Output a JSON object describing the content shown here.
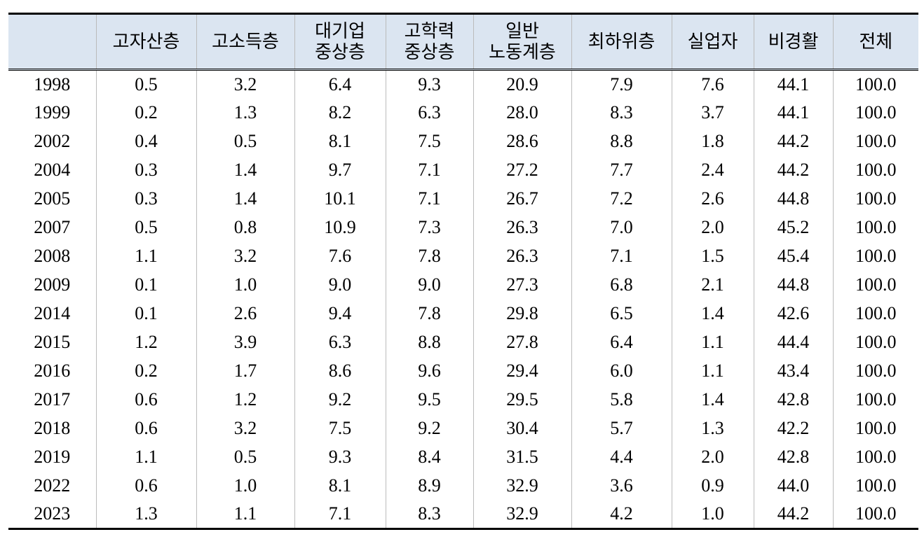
{
  "table": {
    "columns": [
      "고자산층",
      "고소득층",
      "대기업\n중상층",
      "고학력\n중상층",
      "일반\n노동계층",
      "최하위층",
      "실업자",
      "비경활",
      "전체"
    ],
    "rows": [
      [
        "1998",
        "0.5",
        "3.2",
        "6.4",
        "9.3",
        "20.9",
        "7.9",
        "7.6",
        "44.1",
        "100.0"
      ],
      [
        "1999",
        "0.2",
        "1.3",
        "8.2",
        "6.3",
        "28.0",
        "8.3",
        "3.7",
        "44.1",
        "100.0"
      ],
      [
        "2002",
        "0.4",
        "0.5",
        "8.1",
        "7.5",
        "28.6",
        "8.8",
        "1.8",
        "44.2",
        "100.0"
      ],
      [
        "2004",
        "0.3",
        "1.4",
        "9.7",
        "7.1",
        "27.2",
        "7.7",
        "2.4",
        "44.2",
        "100.0"
      ],
      [
        "2005",
        "0.3",
        "1.4",
        "10.1",
        "7.1",
        "26.7",
        "7.2",
        "2.6",
        "44.8",
        "100.0"
      ],
      [
        "2007",
        "0.5",
        "0.8",
        "10.9",
        "7.3",
        "26.3",
        "7.0",
        "2.0",
        "45.2",
        "100.0"
      ],
      [
        "2008",
        "1.1",
        "3.2",
        "7.6",
        "7.8",
        "26.3",
        "7.1",
        "1.5",
        "45.4",
        "100.0"
      ],
      [
        "2009",
        "0.1",
        "1.0",
        "9.0",
        "9.0",
        "27.3",
        "6.8",
        "2.1",
        "44.8",
        "100.0"
      ],
      [
        "2014",
        "0.1",
        "2.6",
        "9.4",
        "7.8",
        "29.8",
        "6.5",
        "1.4",
        "42.6",
        "100.0"
      ],
      [
        "2015",
        "1.2",
        "3.9",
        "6.3",
        "8.8",
        "27.8",
        "6.4",
        "1.1",
        "44.4",
        "100.0"
      ],
      [
        "2016",
        "0.2",
        "1.7",
        "8.6",
        "9.6",
        "29.4",
        "6.0",
        "1.1",
        "43.4",
        "100.0"
      ],
      [
        "2017",
        "0.6",
        "1.2",
        "9.2",
        "9.5",
        "29.5",
        "5.8",
        "1.4",
        "42.8",
        "100.0"
      ],
      [
        "2018",
        "0.6",
        "3.2",
        "7.5",
        "9.2",
        "30.4",
        "5.7",
        "1.3",
        "42.2",
        "100.0"
      ],
      [
        "2019",
        "1.1",
        "0.5",
        "9.3",
        "8.4",
        "31.5",
        "4.4",
        "2.0",
        "42.8",
        "100.0"
      ],
      [
        "2022",
        "0.6",
        "1.0",
        "8.1",
        "8.9",
        "32.9",
        "3.6",
        "0.9",
        "44.0",
        "100.0"
      ],
      [
        "2023",
        "1.3",
        "1.1",
        "7.1",
        "8.3",
        "32.9",
        "4.2",
        "1.0",
        "44.2",
        "100.0"
      ]
    ]
  }
}
